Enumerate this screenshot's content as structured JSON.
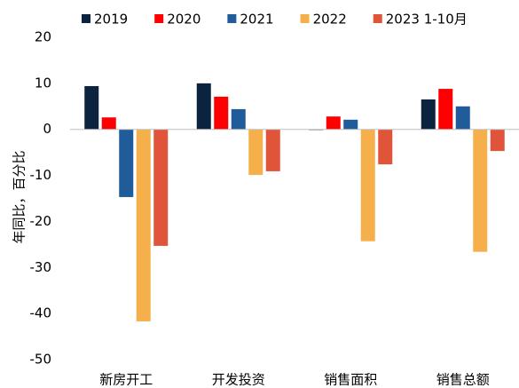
{
  "chart_data": {
    "type": "bar",
    "y_label": "年同比，百分比",
    "categories": [
      "新房开工",
      "开发投资",
      "销售面积",
      "销售总额"
    ],
    "series": [
      {
        "name": "2019",
        "color": "#0c2340",
        "values": [
          9.4,
          10.0,
          -0.1,
          6.5
        ]
      },
      {
        "name": "2020",
        "color": "#ff0000",
        "values": [
          2.6,
          7.1,
          2.8,
          8.8
        ]
      },
      {
        "name": "2021",
        "color": "#1f5c99",
        "values": [
          -14.7,
          4.4,
          2.1,
          5.0
        ]
      },
      {
        "name": "2022",
        "color": "#f5b04c",
        "values": [
          -41.7,
          -9.9,
          -24.3,
          -26.6
        ]
      },
      {
        "name": "2023 1-10月",
        "color": "#e0553a",
        "values": [
          -25.3,
          -9.1,
          -7.6,
          -4.7
        ]
      }
    ],
    "ylim": [
      -50,
      20
    ],
    "yticks": [
      -50,
      -40,
      -30,
      -20,
      -10,
      0,
      10,
      20
    ],
    "legend": "top",
    "grid": false
  }
}
